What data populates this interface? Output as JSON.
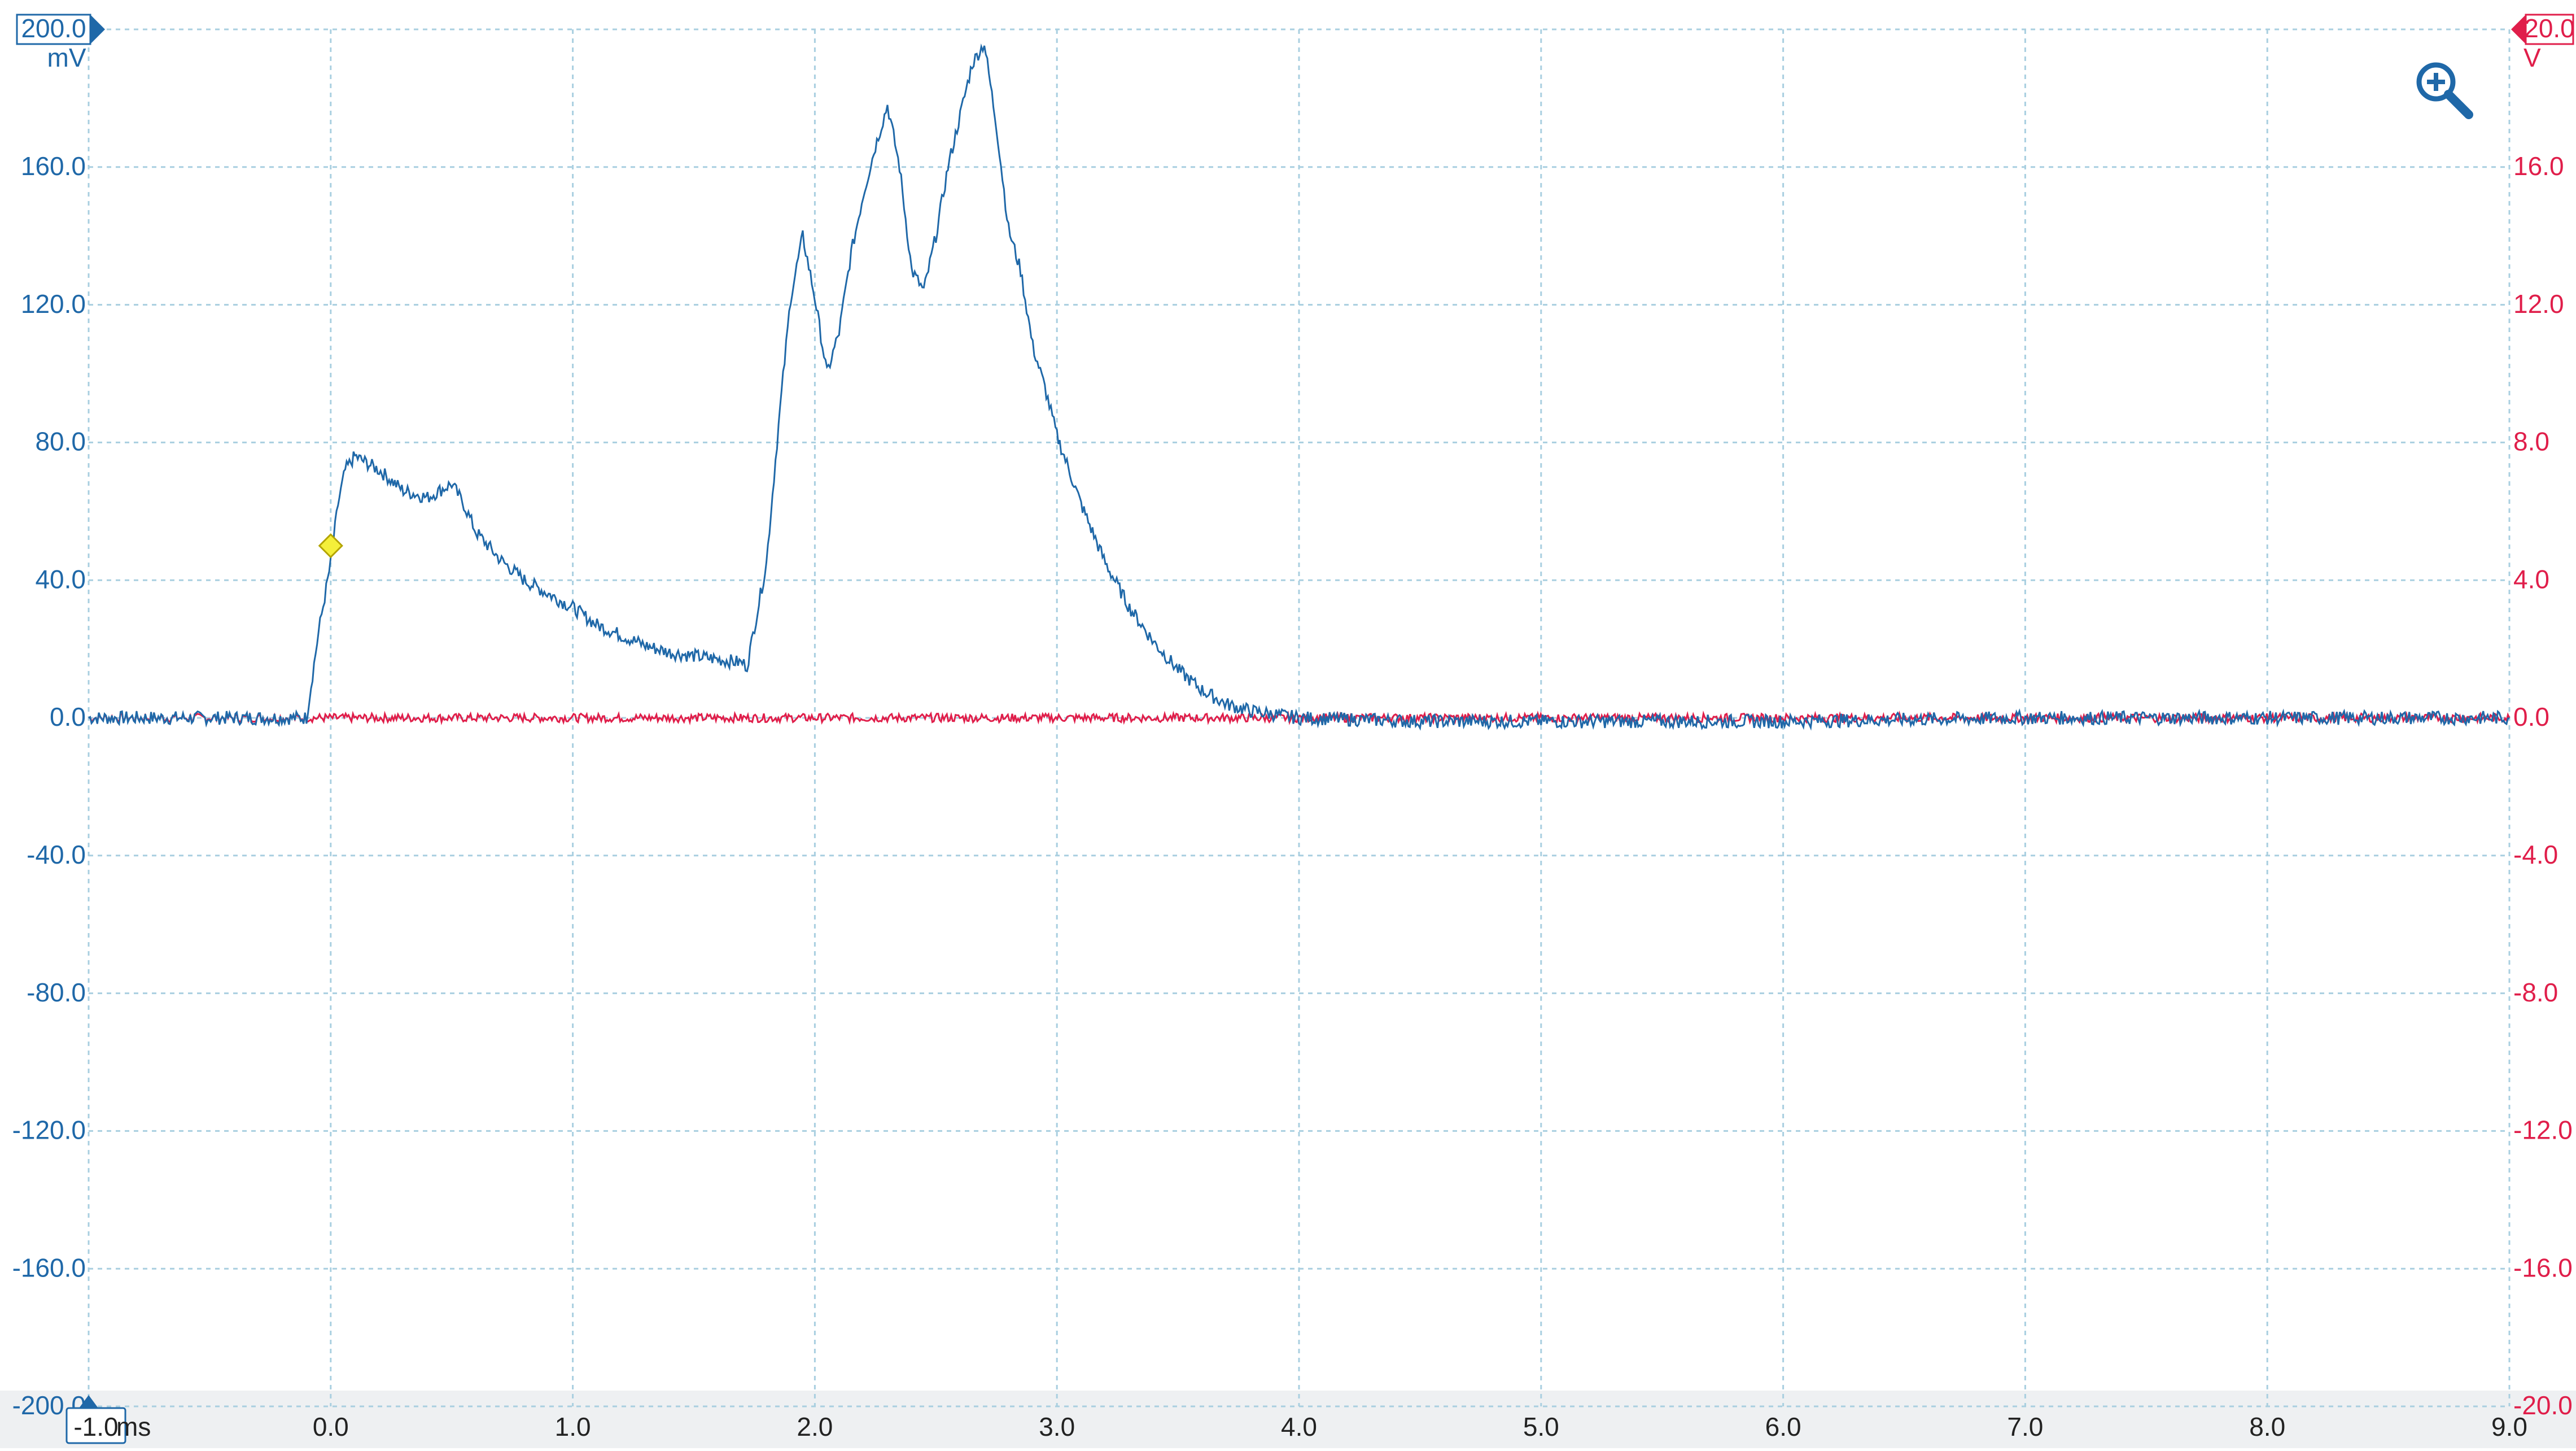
{
  "colors": {
    "channel_a": "#1f68a8",
    "channel_b": "#e01e4a",
    "grid": "#a9cfe0",
    "trigger": "#f4ef3a",
    "trigger_stroke": "#b3a400",
    "axis_bg": "#eef0f2"
  },
  "left_axis": {
    "range_label": "200.0",
    "unit": "mV",
    "ticks": [
      "160.0",
      "120.0",
      "80.0",
      "40.0",
      "0.0",
      "-40.0",
      "-80.0",
      "-120.0",
      "-160.0",
      "-200.0"
    ]
  },
  "right_axis": {
    "range_label": "20.0",
    "unit": "V",
    "ticks": [
      "16.0",
      "12.0",
      "8.0",
      "4.0",
      "0.0",
      "-4.0",
      "-8.0",
      "-12.0",
      "-16.0",
      "-20.0"
    ]
  },
  "bottom_axis": {
    "first_label": "-1.0",
    "unit": "ms",
    "ticks": [
      "0.0",
      "1.0",
      "2.0",
      "3.0",
      "4.0",
      "5.0",
      "6.0",
      "7.0",
      "8.0",
      "9.0"
    ]
  },
  "toolbar": {
    "zoom_icon": "zoom-in-icon"
  },
  "chart_data": {
    "type": "line",
    "xlim": [
      -1.0,
      9.0
    ],
    "xlabel": "ms",
    "grid": true,
    "trigger": {
      "x": 0.0,
      "y": 50
    },
    "series": [
      {
        "unit": "mV",
        "ylim": [
          -200,
          200
        ],
        "color": "#1f68a8",
        "x": [
          -1.0,
          -0.1,
          -0.05,
          0.0,
          0.03,
          0.06,
          0.1,
          0.2,
          0.3,
          0.4,
          0.45,
          0.5,
          0.55,
          0.6,
          0.7,
          0.8,
          0.9,
          1.0,
          1.1,
          1.2,
          1.3,
          1.4,
          1.5,
          1.6,
          1.7,
          1.72,
          1.8,
          1.85,
          1.9,
          1.95,
          2.0,
          2.05,
          2.1,
          2.15,
          2.2,
          2.25,
          2.3,
          2.35,
          2.4,
          2.45,
          2.5,
          2.55,
          2.6,
          2.65,
          2.7,
          2.75,
          2.8,
          2.85,
          2.9,
          2.95,
          3.0,
          3.1,
          3.2,
          3.3,
          3.4,
          3.5,
          3.6,
          3.7,
          3.8,
          3.9,
          4.0,
          4.5,
          5.0,
          6.0,
          7.0,
          8.0,
          9.0
        ],
        "values": [
          0,
          0,
          25,
          45,
          62,
          72,
          76,
          72,
          66,
          64,
          66,
          68,
          62,
          54,
          46,
          40,
          36,
          32,
          27,
          24,
          21,
          19,
          18,
          17,
          16,
          15,
          45,
          85,
          122,
          140,
          122,
          100,
          112,
          135,
          152,
          166,
          178,
          160,
          130,
          124,
          140,
          160,
          175,
          190,
          196,
          172,
          142,
          130,
          108,
          96,
          82,
          62,
          45,
          32,
          22,
          14,
          8,
          4,
          2,
          1,
          0,
          -1,
          -1,
          -1,
          0,
          0,
          0
        ]
      },
      {
        "unit": "V",
        "ylim": [
          -20,
          20
        ],
        "color": "#e01e4a",
        "x": [
          -1.0,
          9.0
        ],
        "values": [
          0,
          0
        ]
      }
    ]
  }
}
